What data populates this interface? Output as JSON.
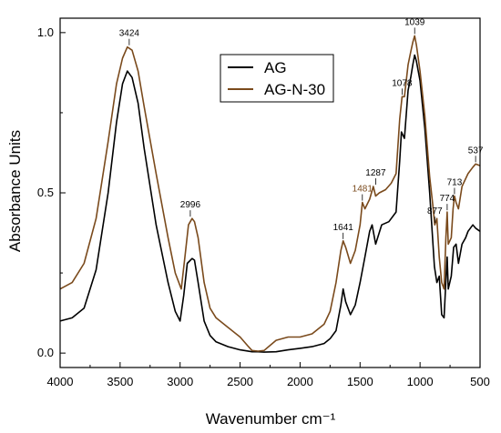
{
  "chart_data": {
    "type": "line",
    "title": "",
    "xlabel": "Wavenumber cm⁻¹",
    "ylabel": "Absorbance Units",
    "xlim": [
      4000,
      500
    ],
    "ylim": [
      -0.045,
      1.045
    ],
    "x_ticks": [
      4000,
      3500,
      3000,
      2500,
      2000,
      1500,
      1000,
      500
    ],
    "x_tick_labels": [
      "4000",
      "3500",
      "3000",
      "2500",
      "2000",
      "1500",
      "1000",
      "500"
    ],
    "y_ticks": [
      0.0,
      0.5,
      1.0
    ],
    "y_tick_labels": [
      "0.0",
      "0.5",
      "1.0"
    ],
    "grid": false,
    "legend_position": "top-center",
    "series": [
      {
        "name": "AG",
        "color": "#000000",
        "points": [
          [
            4000,
            0.1
          ],
          [
            3900,
            0.11
          ],
          [
            3800,
            0.14
          ],
          [
            3700,
            0.26
          ],
          [
            3600,
            0.5
          ],
          [
            3530,
            0.72
          ],
          [
            3480,
            0.84
          ],
          [
            3440,
            0.88
          ],
          [
            3400,
            0.86
          ],
          [
            3350,
            0.78
          ],
          [
            3300,
            0.64
          ],
          [
            3200,
            0.4
          ],
          [
            3100,
            0.22
          ],
          [
            3040,
            0.13
          ],
          [
            3000,
            0.1
          ],
          [
            2970,
            0.18
          ],
          [
            2940,
            0.28
          ],
          [
            2900,
            0.295
          ],
          [
            2880,
            0.29
          ],
          [
            2850,
            0.22
          ],
          [
            2800,
            0.1
          ],
          [
            2750,
            0.055
          ],
          [
            2700,
            0.035
          ],
          [
            2600,
            0.02
          ],
          [
            2500,
            0.01
          ],
          [
            2400,
            0.004
          ],
          [
            2350,
            0.004
          ],
          [
            2300,
            0.003
          ],
          [
            2200,
            0.004
          ],
          [
            2100,
            0.01
          ],
          [
            2000,
            0.015
          ],
          [
            1900,
            0.02
          ],
          [
            1800,
            0.03
          ],
          [
            1750,
            0.045
          ],
          [
            1700,
            0.07
          ],
          [
            1660,
            0.15
          ],
          [
            1641,
            0.2
          ],
          [
            1620,
            0.16
          ],
          [
            1580,
            0.12
          ],
          [
            1540,
            0.15
          ],
          [
            1500,
            0.22
          ],
          [
            1460,
            0.3
          ],
          [
            1420,
            0.38
          ],
          [
            1400,
            0.4
          ],
          [
            1370,
            0.34
          ],
          [
            1320,
            0.4
          ],
          [
            1260,
            0.41
          ],
          [
            1200,
            0.44
          ],
          [
            1170,
            0.6
          ],
          [
            1155,
            0.69
          ],
          [
            1130,
            0.67
          ],
          [
            1100,
            0.82
          ],
          [
            1078,
            0.86
          ],
          [
            1060,
            0.9
          ],
          [
            1045,
            0.93
          ],
          [
            1030,
            0.91
          ],
          [
            1000,
            0.85
          ],
          [
            960,
            0.7
          ],
          [
            920,
            0.5
          ],
          [
            880,
            0.27
          ],
          [
            860,
            0.22
          ],
          [
            840,
            0.24
          ],
          [
            820,
            0.12
          ],
          [
            800,
            0.11
          ],
          [
            780,
            0.26
          ],
          [
            774,
            0.3
          ],
          [
            765,
            0.2
          ],
          [
            740,
            0.24
          ],
          [
            720,
            0.33
          ],
          [
            700,
            0.34
          ],
          [
            680,
            0.28
          ],
          [
            650,
            0.34
          ],
          [
            620,
            0.36
          ],
          [
            600,
            0.38
          ],
          [
            560,
            0.4
          ],
          [
            537,
            0.39
          ],
          [
            500,
            0.38
          ]
        ]
      },
      {
        "name": "AG-N-30",
        "color": "#7a4a1c",
        "points": [
          [
            4000,
            0.2
          ],
          [
            3900,
            0.22
          ],
          [
            3800,
            0.28
          ],
          [
            3700,
            0.42
          ],
          [
            3600,
            0.66
          ],
          [
            3530,
            0.84
          ],
          [
            3480,
            0.92
          ],
          [
            3440,
            0.955
          ],
          [
            3400,
            0.945
          ],
          [
            3350,
            0.88
          ],
          [
            3300,
            0.77
          ],
          [
            3200,
            0.56
          ],
          [
            3100,
            0.36
          ],
          [
            3040,
            0.25
          ],
          [
            2990,
            0.2
          ],
          [
            2960,
            0.3
          ],
          [
            2930,
            0.4
          ],
          [
            2900,
            0.42
          ],
          [
            2880,
            0.41
          ],
          [
            2850,
            0.36
          ],
          [
            2800,
            0.22
          ],
          [
            2750,
            0.14
          ],
          [
            2700,
            0.11
          ],
          [
            2600,
            0.08
          ],
          [
            2500,
            0.05
          ],
          [
            2430,
            0.02
          ],
          [
            2400,
            0.008
          ],
          [
            2350,
            0.006
          ],
          [
            2300,
            0.008
          ],
          [
            2200,
            0.04
          ],
          [
            2100,
            0.05
          ],
          [
            2000,
            0.05
          ],
          [
            1900,
            0.06
          ],
          [
            1800,
            0.09
          ],
          [
            1750,
            0.13
          ],
          [
            1700,
            0.22
          ],
          [
            1660,
            0.32
          ],
          [
            1641,
            0.35
          ],
          [
            1620,
            0.33
          ],
          [
            1580,
            0.28
          ],
          [
            1540,
            0.32
          ],
          [
            1500,
            0.4
          ],
          [
            1481,
            0.47
          ],
          [
            1460,
            0.45
          ],
          [
            1420,
            0.48
          ],
          [
            1390,
            0.52
          ],
          [
            1370,
            0.49
          ],
          [
            1340,
            0.5
          ],
          [
            1287,
            0.51
          ],
          [
            1240,
            0.53
          ],
          [
            1200,
            0.56
          ],
          [
            1170,
            0.73
          ],
          [
            1150,
            0.8
          ],
          [
            1130,
            0.8
          ],
          [
            1100,
            0.9
          ],
          [
            1078,
            0.94
          ],
          [
            1060,
            0.97
          ],
          [
            1045,
            0.99
          ],
          [
            1030,
            0.96
          ],
          [
            1000,
            0.88
          ],
          [
            960,
            0.74
          ],
          [
            920,
            0.55
          ],
          [
            890,
            0.45
          ],
          [
            877,
            0.4
          ],
          [
            860,
            0.42
          ],
          [
            840,
            0.3
          ],
          [
            820,
            0.22
          ],
          [
            800,
            0.2
          ],
          [
            785,
            0.36
          ],
          [
            774,
            0.44
          ],
          [
            765,
            0.34
          ],
          [
            740,
            0.36
          ],
          [
            725,
            0.45
          ],
          [
            713,
            0.49
          ],
          [
            700,
            0.47
          ],
          [
            680,
            0.45
          ],
          [
            650,
            0.52
          ],
          [
            600,
            0.56
          ],
          [
            560,
            0.58
          ],
          [
            537,
            0.59
          ],
          [
            500,
            0.585
          ]
        ]
      }
    ],
    "annotations": [
      {
        "text": "3424",
        "x": 3424,
        "y": 0.955,
        "color": "#000000"
      },
      {
        "text": "2996",
        "x": 2915,
        "y": 0.42,
        "color": "#000000"
      },
      {
        "text": "1641",
        "x": 1641,
        "y": 0.35,
        "color": "#000000"
      },
      {
        "text": "1481",
        "x": 1481,
        "y": 0.47,
        "color": "#7a4a1c"
      },
      {
        "text": "1287",
        "x": 1370,
        "y": 0.52,
        "color": "#000000"
      },
      {
        "text": "1078",
        "x": 1150,
        "y": 0.8,
        "color": "#000000"
      },
      {
        "text": "1039",
        "x": 1045,
        "y": 0.99,
        "color": "#000000"
      },
      {
        "text": "877",
        "x": 877,
        "y": 0.4,
        "color": "#000000"
      },
      {
        "text": "774",
        "x": 774,
        "y": 0.44,
        "color": "#000000"
      },
      {
        "text": "713",
        "x": 713,
        "y": 0.49,
        "color": "#000000"
      },
      {
        "text": "537",
        "x": 537,
        "y": 0.59,
        "color": "#000000"
      }
    ]
  }
}
